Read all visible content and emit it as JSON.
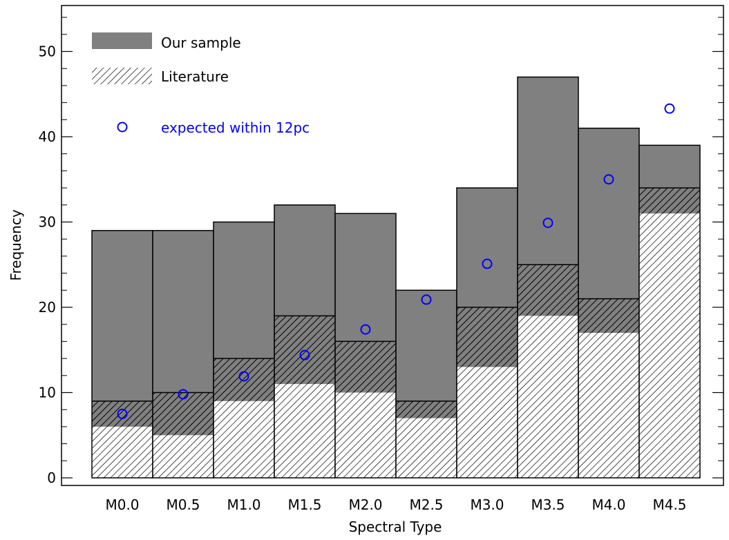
{
  "chart_data": {
    "type": "bar",
    "xlabel": "Spectral Type",
    "ylabel": "Frequency",
    "ylim": [
      0,
      57
    ],
    "yticks": [
      0,
      10,
      20,
      30,
      40,
      50
    ],
    "categories": [
      "M0.0",
      "M0.5",
      "M1.0",
      "M1.5",
      "M2.0",
      "M2.5",
      "M3.0",
      "M3.5",
      "M4.0",
      "M4.5"
    ],
    "series": [
      {
        "name": "Our sample",
        "values": [
          29,
          29,
          30,
          32,
          31,
          22,
          34,
          47,
          41,
          39
        ],
        "color": "#808080",
        "style": "solid"
      },
      {
        "name": "Literature",
        "values": [
          9,
          10,
          14,
          19,
          16,
          9,
          20,
          25,
          21,
          34
        ],
        "color": "#000000",
        "style": "hatched"
      },
      {
        "name": "",
        "values": [
          6,
          5,
          9,
          11,
          10,
          7,
          13,
          19,
          17,
          31
        ],
        "style": "hatched-white"
      },
      {
        "name": "expected within 12pc",
        "values": [
          7.5,
          9.8,
          11.9,
          14.4,
          17.4,
          20.9,
          25.1,
          29.9,
          35.0,
          43.3
        ],
        "color": "#0000ff",
        "style": "open-circle"
      }
    ],
    "legend": {
      "position": "top-left",
      "entries": [
        "Our sample",
        "Literature",
        "expected within 12pc"
      ]
    },
    "grid": false
  }
}
